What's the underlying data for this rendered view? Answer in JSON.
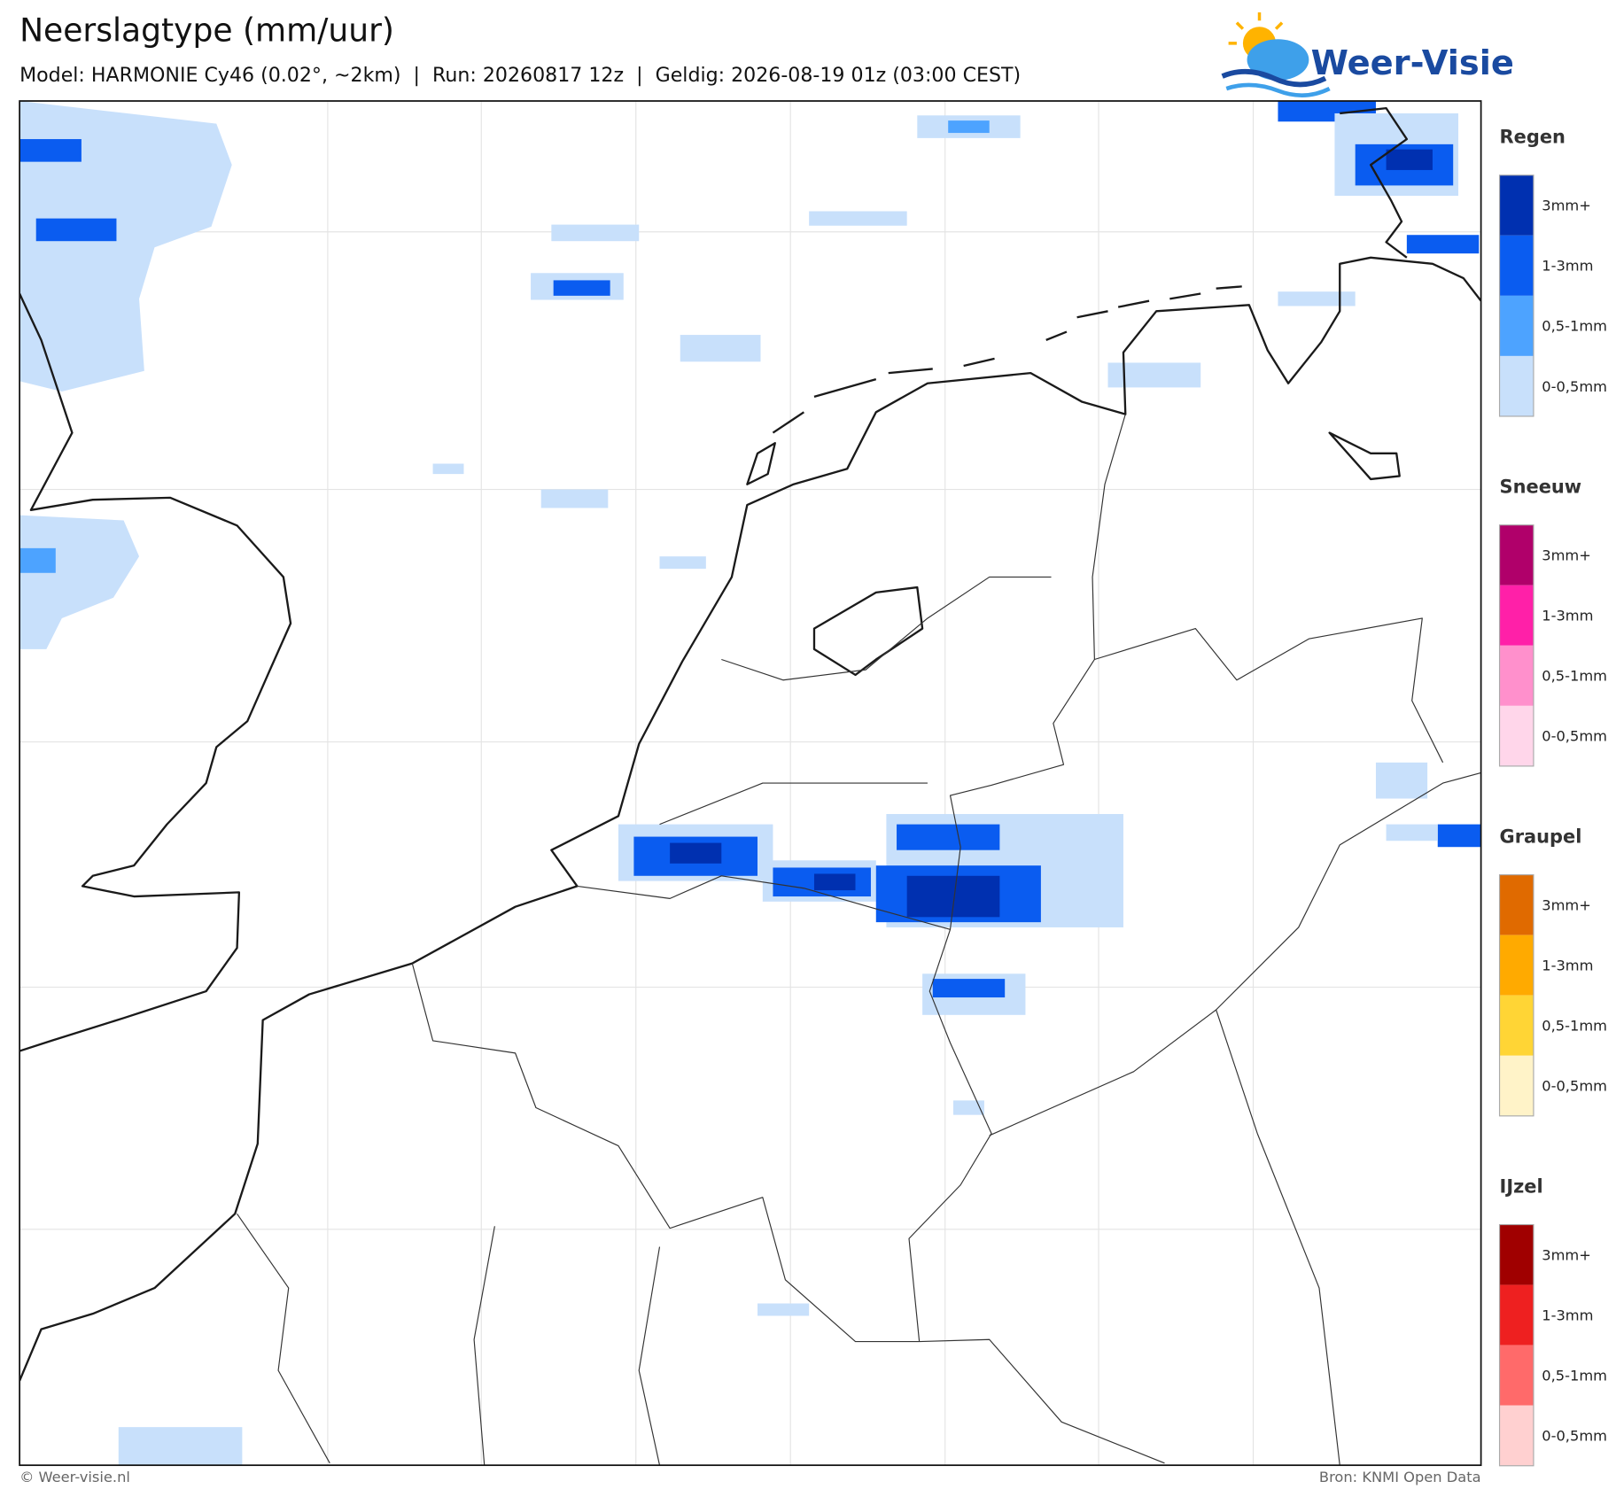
{
  "header": {
    "title": "Neerslagtype (mm/uur)",
    "subtitle": "Model: HARMONIE Cy46 (0.02°, ~2km)  |  Run: 20260817 12z  |  Geldig: 2026-08-19 01z (03:00 CEST)",
    "logo": "Weer-Visie"
  },
  "legend": [
    {
      "title": "Regen",
      "items": [
        {
          "label": "3mm+",
          "color": "#0030b0"
        },
        {
          "label": "1-3mm",
          "color": "#0a5cf0"
        },
        {
          "label": "0,5-1mm",
          "color": "#4da3ff"
        },
        {
          "label": "0-0,5mm",
          "color": "#c8e0fb"
        }
      ]
    },
    {
      "title": "Sneeuw",
      "items": [
        {
          "label": "3mm+",
          "color": "#b0006a"
        },
        {
          "label": "1-3mm",
          "color": "#ff20a8"
        },
        {
          "label": "0,5-1mm",
          "color": "#ff90cc"
        },
        {
          "label": "0-0,5mm",
          "color": "#ffd6ea"
        }
      ]
    },
    {
      "title": "Graupel",
      "items": [
        {
          "label": "3mm+",
          "color": "#e06a00"
        },
        {
          "label": "1-3mm",
          "color": "#ffaa00"
        },
        {
          "label": "0,5-1mm",
          "color": "#ffd535"
        },
        {
          "label": "0-0,5mm",
          "color": "#fff3c8"
        }
      ]
    },
    {
      "title": "IJzel",
      "items": [
        {
          "label": "3mm+",
          "color": "#a00000"
        },
        {
          "label": "1-3mm",
          "color": "#ee2020"
        },
        {
          "label": "0,5-1mm",
          "color": "#ff6a6a"
        },
        {
          "label": "0-0,5mm",
          "color": "#ffd0d0"
        }
      ]
    }
  ],
  "footer": {
    "left": "© Weer-visie.nl",
    "right": "Bron: KNMI Open Data"
  }
}
